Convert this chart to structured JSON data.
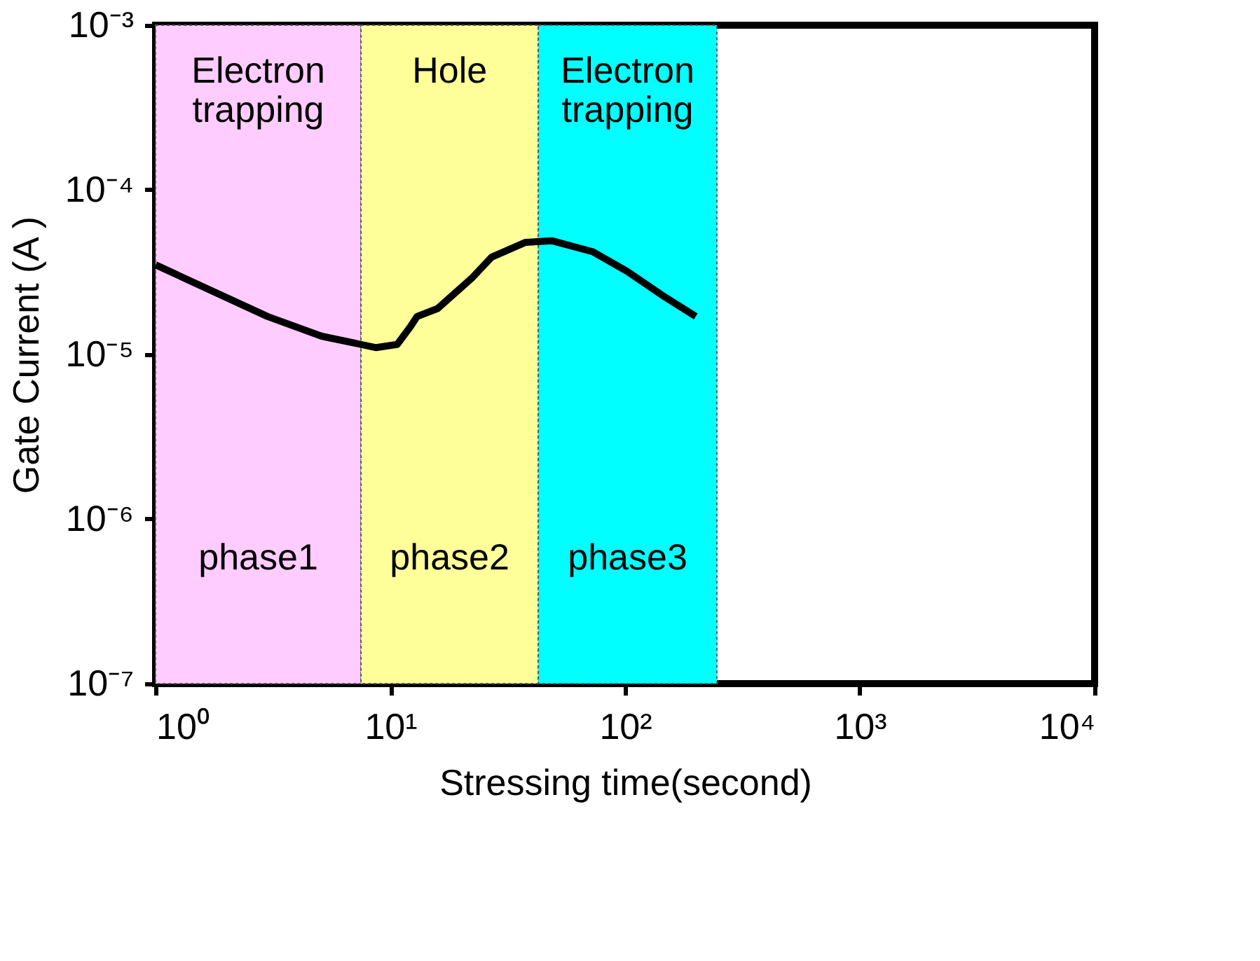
{
  "chart_data": {
    "type": "line",
    "xlabel": "Stressing time(second)",
    "ylabel": "Gate Current (A )",
    "x": [
      1,
      3.0,
      5.1,
      8.7,
      10.7,
      12.2,
      13,
      15.9,
      22.2,
      27,
      37.7,
      49,
      73,
      102,
      143,
      200
    ],
    "series": [
      {
        "color": "#000000",
        "values": [
          3.5e-05,
          1.7e-05,
          1.29e-05,
          1.1e-05,
          1.15e-05,
          1.48e-05,
          1.7e-05,
          1.9e-05,
          2.9e-05,
          3.9e-05,
          4.8e-05,
          4.9e-05,
          4.2e-05,
          3.2e-05,
          2.3e-05,
          1.7e-05
        ]
      }
    ],
    "log": "xy",
    "xlim": [
      1,
      10000
    ],
    "ylim": [
      1e-07,
      0.001
    ],
    "xticks": [
      {
        "value": 1,
        "label": "10⁰"
      },
      {
        "value": 10,
        "label": "10¹"
      },
      {
        "value": 100,
        "label": "10²"
      },
      {
        "value": 1000,
        "label": "10³"
      },
      {
        "value": 10000,
        "label": "10⁴"
      }
    ],
    "yticks": [
      {
        "value": 1e-07,
        "label": "10⁻⁷"
      },
      {
        "value": 1e-06,
        "label": "10⁻⁶"
      },
      {
        "value": 1e-05,
        "label": "10⁻⁵"
      },
      {
        "value": 0.0001,
        "label": "10⁻⁴"
      },
      {
        "value": 0.001,
        "label": "10⁻³"
      }
    ],
    "bands": [
      {
        "axis": "x",
        "from": 1,
        "to": 7.5,
        "label": "Electron trapping",
        "color": "#ffccff"
      },
      {
        "axis": "x",
        "from": 7.5,
        "to": 42.7,
        "label": "Hole",
        "color": "#ffff99"
      },
      {
        "axis": "x",
        "from": 42.7,
        "to": 246,
        "label": "Electron trapping",
        "color": "#00ffff"
      }
    ],
    "annotations": [
      "phase1",
      "phase2",
      "phase3"
    ],
    "grid": false,
    "legend": false,
    "marker": "none",
    "line_style": "solid"
  }
}
